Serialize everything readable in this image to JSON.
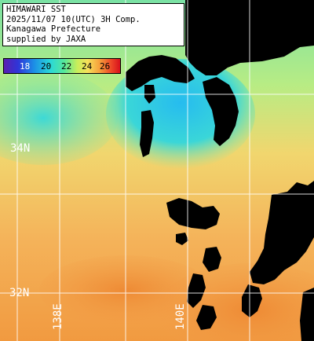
{
  "header": {
    "lines": [
      "HIMAWARI SST",
      "2025/11/07 10(UTC) 3H Comp.",
      "Kanagawa Prefecture",
      "supplied by JAXA"
    ]
  },
  "colorbar": {
    "labels": [
      "18",
      "20",
      "22",
      "24",
      "26"
    ],
    "colors": [
      "#5a1fb0",
      "#2f35d8",
      "#1c8fe6",
      "#2ad8d8",
      "#56e89a",
      "#c8ee5a",
      "#f6e05a",
      "#f6a23c",
      "#ee4a28",
      "#d8101c"
    ]
  },
  "grid": {
    "lat_labels": [
      "34N",
      "32N"
    ],
    "lon_labels": [
      "138E",
      "140E"
    ]
  },
  "colors": {
    "land": "#000000",
    "warm_sea": "#f2a24a",
    "cool_sea": "#38d6d8",
    "bay_sea": "#2fc6ee",
    "grid_line": "#ffffff"
  }
}
